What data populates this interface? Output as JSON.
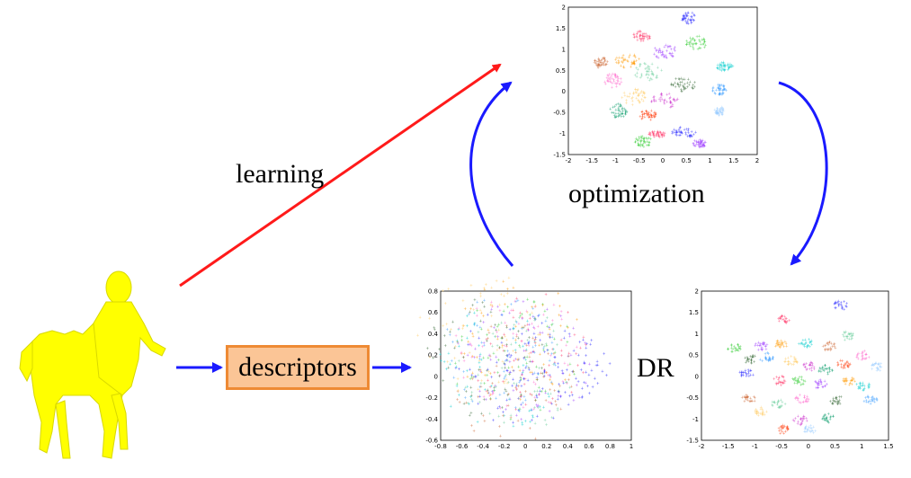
{
  "labels": {
    "learning": "learning",
    "optimization": "optimization",
    "descriptors": "descriptors",
    "dr": "DR"
  },
  "colors": {
    "learning_arrow": "#ff1a1a",
    "flow_arrows": "#1a1aff",
    "descriptor_fill": "#fbc596",
    "descriptor_border": "#ee8a34",
    "figure": "#ffff00"
  },
  "icons": {
    "figure": "centaur-model"
  },
  "plots": {
    "top": {
      "x_ticks": [
        "-2",
        "-1.5",
        "-1",
        "-0.5",
        "0",
        "0.5",
        "1",
        "1.5",
        "2"
      ],
      "y_ticks": [
        "2",
        "1.5",
        "1",
        "0.5",
        "0",
        "-0.5",
        "-1",
        "-1.5"
      ]
    },
    "left": {
      "x_ticks": [
        "-0.8",
        "-0.6",
        "-0.4",
        "-0.2",
        "0",
        "0.2",
        "0.4",
        "0.6",
        "0.8",
        "1"
      ],
      "y_ticks": [
        "0.8",
        "0.6",
        "0.4",
        "0.2",
        "0",
        "-0.2",
        "-0.4",
        "-0.6"
      ]
    },
    "right": {
      "x_ticks": [
        "-2",
        "-1.5",
        "-1",
        "-0.5",
        "0",
        "0.5",
        "1",
        "1.5"
      ],
      "y_ticks": [
        "2",
        "1.5",
        "1",
        "0.5",
        "0",
        "-0.5",
        "-1",
        "-1.5"
      ]
    }
  }
}
